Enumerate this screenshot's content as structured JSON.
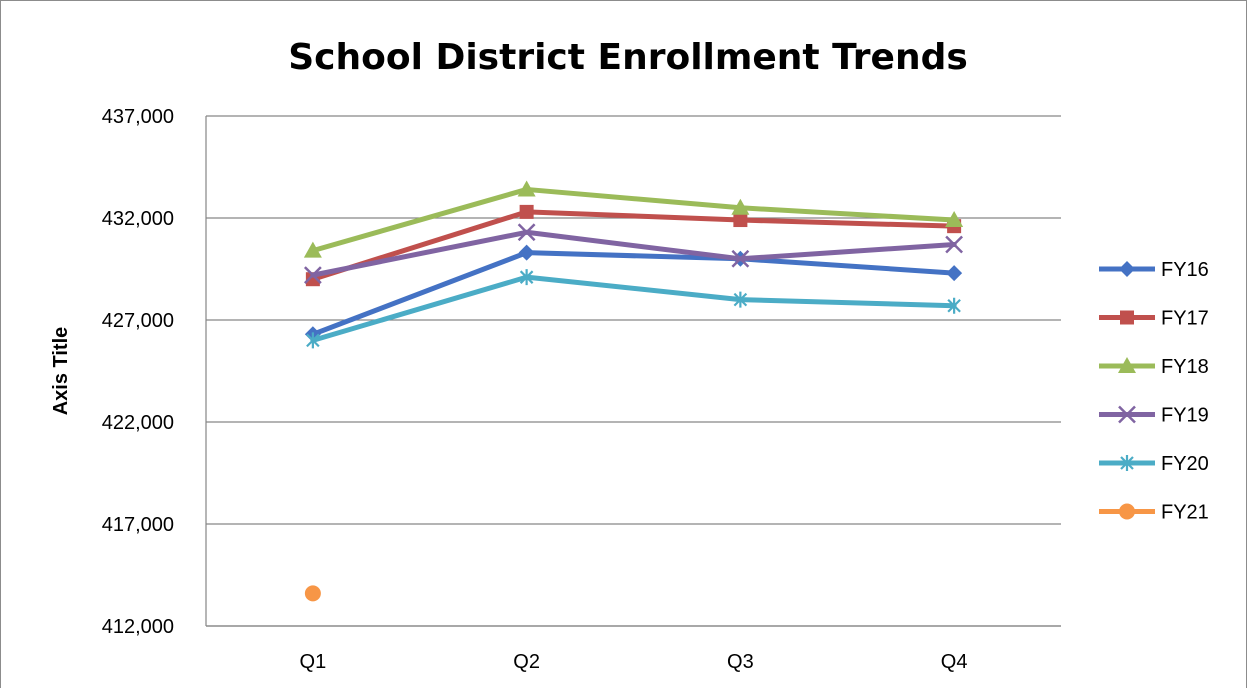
{
  "chart_data": {
    "type": "line",
    "title": "School District Enrollment Trends",
    "xlabel": "",
    "ylabel": "Axis Title",
    "categories": [
      "Q1",
      "Q2",
      "Q3",
      "Q4"
    ],
    "ylim": [
      412000,
      437000
    ],
    "yticks": [
      412000,
      417000,
      422000,
      427000,
      432000,
      437000
    ],
    "ytick_labels": [
      "412,000",
      "417,000",
      "422,000",
      "427,000",
      "432,000",
      "437,000"
    ],
    "grid": true,
    "legend_position": "right",
    "series": [
      {
        "name": "FY16",
        "color": "#4472c4",
        "marker": "diamond",
        "values": [
          426300,
          430300,
          430000,
          429300
        ]
      },
      {
        "name": "FY17",
        "color": "#c0504d",
        "marker": "square",
        "values": [
          429000,
          432300,
          431900,
          431600
        ]
      },
      {
        "name": "FY18",
        "color": "#9bbb59",
        "marker": "triangle",
        "values": [
          430400,
          433400,
          432500,
          431900
        ]
      },
      {
        "name": "FY19",
        "color": "#8064a2",
        "marker": "x",
        "values": [
          429200,
          431300,
          430000,
          430700
        ]
      },
      {
        "name": "FY20",
        "color": "#4bacc6",
        "marker": "asterisk",
        "values": [
          426000,
          429100,
          428000,
          427700
        ]
      },
      {
        "name": "FY21",
        "color": "#f79646",
        "marker": "circle",
        "values": [
          413600,
          null,
          null,
          null
        ]
      }
    ]
  }
}
